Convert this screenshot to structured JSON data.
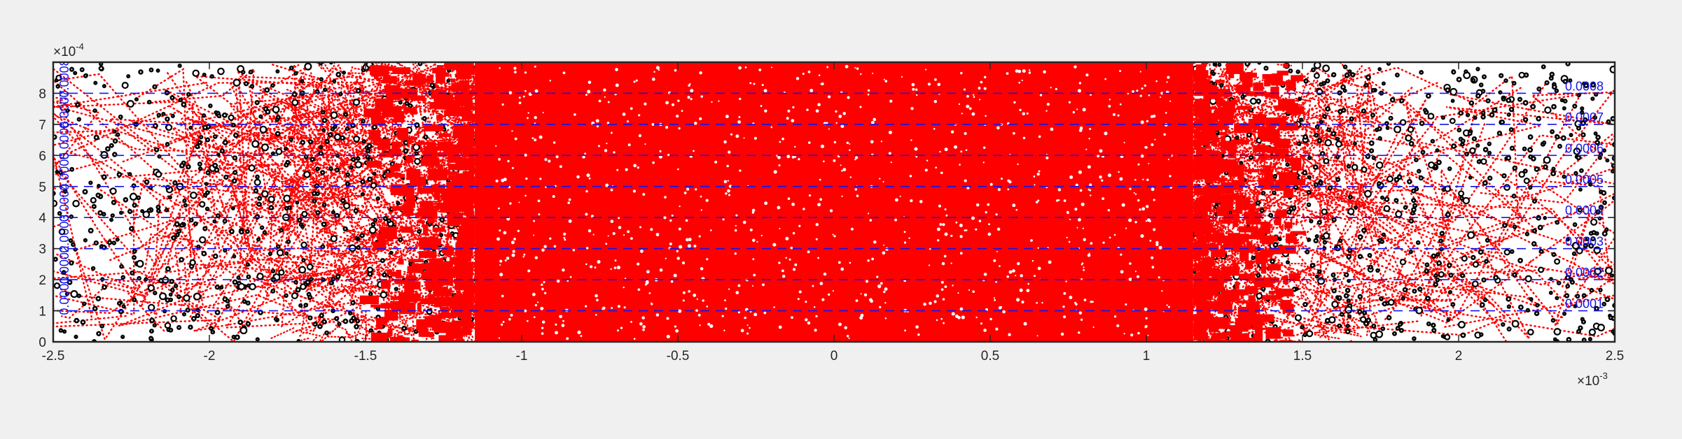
{
  "chart_data": {
    "type": "scatter",
    "title": "",
    "xlabel": "",
    "ylabel": "",
    "xlim": [
      -0.0025,
      0.0025
    ],
    "ylim": [
      0,
      0.0009
    ],
    "x_exponent": {
      "base": "×10",
      "power": "-3",
      "scale": 0.001
    },
    "y_exponent": {
      "base": "×10",
      "power": "-4",
      "scale": 0.0001
    },
    "x_ticks": [
      {
        "value": -0.0025,
        "label": "-2.5"
      },
      {
        "value": -0.002,
        "label": "-2"
      },
      {
        "value": -0.0015,
        "label": "-1.5"
      },
      {
        "value": -0.001,
        "label": "-1"
      },
      {
        "value": -0.0005,
        "label": "-0.5"
      },
      {
        "value": 0,
        "label": "0"
      },
      {
        "value": 0.0005,
        "label": "0.5"
      },
      {
        "value": 0.001,
        "label": "1"
      },
      {
        "value": 0.0015,
        "label": "1.5"
      },
      {
        "value": 0.002,
        "label": "2"
      },
      {
        "value": 0.0025,
        "label": "2.5"
      }
    ],
    "y_ticks": [
      {
        "value": 0,
        "label": "0"
      },
      {
        "value": 0.0001,
        "label": "1"
      },
      {
        "value": 0.0002,
        "label": "2"
      },
      {
        "value": 0.0003,
        "label": "3"
      },
      {
        "value": 0.0004,
        "label": "4"
      },
      {
        "value": 0.0005,
        "label": "5"
      },
      {
        "value": 0.0006,
        "label": "6"
      },
      {
        "value": 0.0007,
        "label": "7"
      },
      {
        "value": 0.0008,
        "label": "8"
      }
    ],
    "grid": false,
    "legend": "none",
    "contour_levels": [
      {
        "value": 0.0001,
        "label": "0.0001"
      },
      {
        "value": 0.0002,
        "label": "0.0002"
      },
      {
        "value": 0.0003,
        "label": "0.0003"
      },
      {
        "value": 0.0004,
        "label": "0.0004"
      },
      {
        "value": 0.0005,
        "label": "0.0005"
      },
      {
        "value": 0.0006,
        "label": "0.0006"
      },
      {
        "value": 0.0007,
        "label": "0.0007"
      },
      {
        "value": 0.0008,
        "label": "0.0008"
      }
    ],
    "series": [
      {
        "role": "particles (white circles, black edge)",
        "marker": "o",
        "face_color": "#ffffff",
        "edge_color": "#000000",
        "count_approx": 2400,
        "distribution": "uniform over xlim × ylim"
      },
      {
        "role": "trajectories (red dotted)",
        "marker": ".",
        "color": "#ff0000",
        "density_profile": "dense core for |x| < 0.0012, sparse random segments for |x| > 0.0014",
        "core_xlim": [
          -0.00115,
          0.00115
        ]
      },
      {
        "role": "contour lines (blue dashed)",
        "line": "--",
        "color": "#1414e6",
        "y_values": [
          0.0001,
          0.0002,
          0.0003,
          0.0004,
          0.0005,
          0.0006,
          0.0007,
          0.0008
        ]
      }
    ],
    "colors": {
      "background": "#f0f0f0",
      "axes_face": "#ffffff",
      "trajectory": "#ff0000",
      "contour": "#1414e6",
      "particle_edge": "#000000",
      "axis_text": "#262626"
    }
  }
}
